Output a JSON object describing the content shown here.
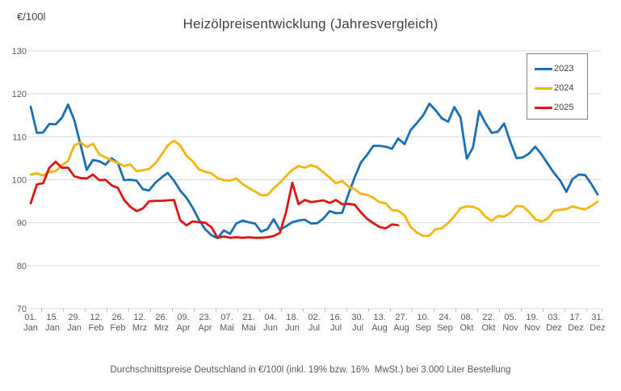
{
  "title": "Heizölpreisentwicklung (Jahresvergleich)",
  "y_axis_unit": "€/100l",
  "footer": "Durchschnittspreise Deutschland in €/100l (inkl. 19% bzw. 16%  MwSt.) bei 3.000 Liter Bestellung",
  "colors": {
    "series_2023": "#1a6fb5",
    "series_2024": "#f2b50d",
    "series_2025": "#dc1612",
    "gridline": "#d9d9d9",
    "axis_text": "#595959",
    "title_text": "#3f3f3f",
    "legend_border": "#808080"
  },
  "legend": {
    "position": "top-right",
    "entries": [
      {
        "label": "2023",
        "color": "#1a6fb5"
      },
      {
        "label": "2024",
        "color": "#f2b50d"
      },
      {
        "label": "2025",
        "color": "#dc1612"
      }
    ]
  },
  "chart_data": {
    "type": "line",
    "title": "Heizölpreisentwicklung (Jahresvergleich)",
    "xlabel": "",
    "ylabel": "€/100l",
    "ylim": [
      70,
      130
    ],
    "y_ticks": [
      70,
      80,
      90,
      100,
      110,
      120,
      130
    ],
    "grid": true,
    "legend_position": "top-right",
    "x_max_day": 364,
    "x_tick_step_days": 14,
    "x_tick_labels": [
      "01. Jan",
      "15. Jan",
      "29. Jan",
      "12. Feb",
      "26. Feb",
      "12. Mrz",
      "26. Mrz",
      "09. Apr",
      "23. Apr",
      "07. Mai",
      "21. Mai",
      "04. Jun",
      "18. Jun",
      "02. Jul",
      "16. Jul",
      "30. Jul",
      "13. Aug",
      "27. Aug",
      "10. Sep",
      "24. Sep",
      "08. Okt",
      "22. Okt",
      "05. Nov",
      "19. Nov",
      "03. Dez",
      "17. Dez",
      "31. Dez"
    ],
    "sampling_note": "values sampled every 4 days starting 01. Jan, unit €/100l",
    "series": [
      {
        "name": "2023",
        "color": "#1a6fb5",
        "start_day": 0,
        "step_days": 4,
        "values": [
          117.0,
          110.9,
          111.0,
          113.0,
          112.9,
          114.4,
          117.5,
          113.9,
          108.2,
          102.3,
          104.6,
          104.3,
          103.5,
          105.0,
          103.9,
          99.9,
          100.0,
          99.8,
          97.8,
          97.5,
          99.3,
          100.5,
          101.6,
          99.8,
          97.5,
          95.8,
          93.5,
          90.7,
          88.5,
          87.1,
          86.4,
          88.2,
          87.4,
          89.8,
          90.5,
          90.1,
          89.8,
          87.9,
          88.5,
          90.8,
          88.3,
          89.2,
          90.1,
          90.5,
          90.7,
          89.8,
          89.9,
          91.0,
          92.7,
          92.2,
          92.3,
          96.6,
          100.5,
          104.0,
          105.8,
          107.9,
          107.9,
          107.7,
          107.2,
          109.6,
          108.3,
          111.6,
          113.2,
          115.0,
          117.7,
          116.2,
          114.3,
          113.5,
          116.9,
          114.5,
          104.9,
          107.5,
          116.0,
          113.2,
          110.9,
          111.2,
          113.1,
          108.8,
          105.0,
          105.2,
          106.1,
          107.7,
          105.9,
          103.7,
          101.6,
          99.8,
          97.2,
          100.2,
          101.2,
          101.1,
          99.0,
          96.6
        ]
      },
      {
        "name": "2024",
        "color": "#f2b50d",
        "start_day": 0,
        "step_days": 4,
        "values": [
          101.2,
          101.5,
          101.0,
          101.8,
          102.0,
          103.3,
          104.4,
          108.0,
          108.7,
          107.6,
          108.4,
          105.9,
          105.2,
          104.5,
          103.9,
          103.2,
          103.6,
          102.0,
          102.2,
          102.5,
          103.8,
          105.8,
          108.0,
          109.1,
          108.0,
          105.6,
          104.3,
          102.4,
          101.9,
          101.5,
          100.4,
          99.9,
          99.8,
          100.3,
          99.0,
          98.1,
          97.3,
          96.4,
          96.4,
          98.0,
          99.3,
          100.9,
          102.3,
          103.2,
          102.8,
          103.4,
          102.9,
          101.7,
          100.5,
          99.2,
          99.7,
          98.4,
          97.8,
          96.7,
          96.5,
          95.8,
          94.8,
          94.5,
          92.9,
          92.8,
          91.7,
          89.0,
          87.7,
          86.9,
          87.0,
          88.5,
          88.7,
          89.9,
          91.5,
          93.4,
          93.8,
          93.7,
          93.1,
          91.4,
          90.4,
          91.6,
          91.4,
          92.3,
          93.9,
          93.8,
          92.5,
          90.8,
          90.3,
          91.0,
          92.8,
          93.0,
          93.2,
          93.8,
          93.4,
          93.1,
          93.9,
          94.9
        ]
      },
      {
        "name": "2025",
        "color": "#dc1612",
        "start_day": 0,
        "step_days": 4,
        "values": [
          94.5,
          98.9,
          99.2,
          102.8,
          104.2,
          102.8,
          102.8,
          100.8,
          100.4,
          100.3,
          101.2,
          99.9,
          100.0,
          98.7,
          98.1,
          95.3,
          93.7,
          92.7,
          93.3,
          95.0,
          95.1,
          95.1,
          95.2,
          95.3,
          90.6,
          89.4,
          90.3,
          90.1,
          90.0,
          89.0,
          86.5,
          86.8,
          86.5,
          86.6,
          86.5,
          86.6,
          86.5,
          86.5,
          86.6,
          86.9,
          87.6,
          92.5,
          99.3,
          94.3,
          95.3,
          94.8,
          95.0,
          95.2,
          94.6,
          95.3,
          94.3,
          94.4,
          94.2,
          92.4,
          90.9,
          89.9,
          89.0,
          88.7,
          89.6,
          89.4
        ]
      }
    ]
  }
}
